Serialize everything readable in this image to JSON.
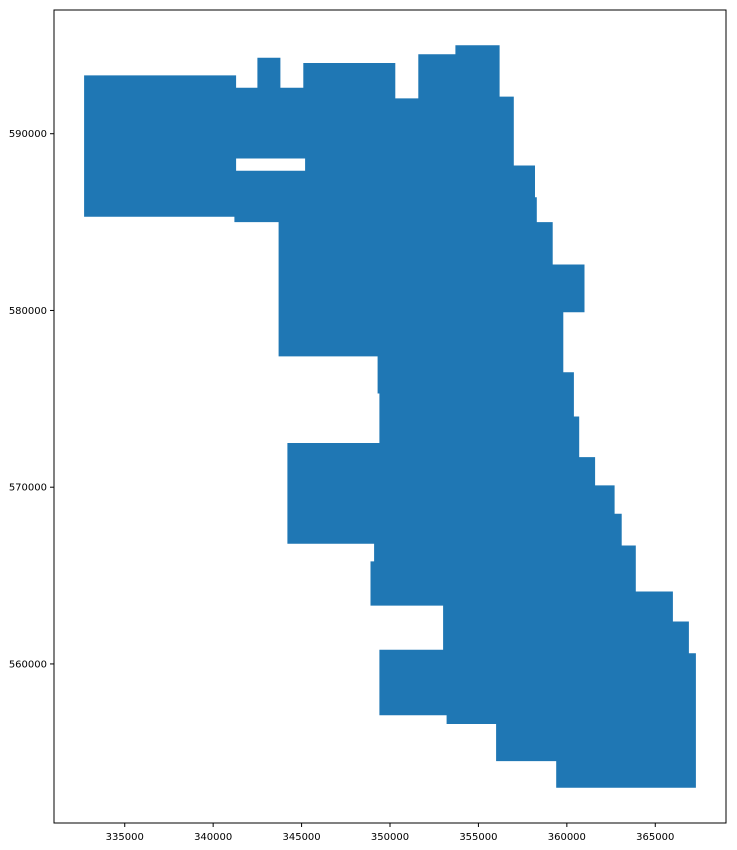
{
  "chart_data": {
    "type": "area",
    "title": "",
    "xlabel": "",
    "ylabel": "",
    "xlim": [
      331000,
      369000
    ],
    "ylim": [
      551000,
      597000
    ],
    "grid": false,
    "legend": "none",
    "fill_color": "#1f77b4",
    "axis_color": "#000000",
    "x_ticks": [
      335000,
      340000,
      345000,
      350000,
      355000,
      360000,
      365000
    ],
    "y_ticks": [
      560000,
      570000,
      580000,
      590000
    ],
    "x_tick_labels": [
      "335000",
      "340000",
      "345000",
      "350000",
      "355000",
      "360000",
      "365000"
    ],
    "y_tick_labels": [
      "560000",
      "570000",
      "580000",
      "590000"
    ],
    "polygon": [
      [
        332700,
        593300
      ],
      [
        341300,
        593300
      ],
      [
        341300,
        592600
      ],
      [
        342500,
        592600
      ],
      [
        342500,
        594300
      ],
      [
        343800,
        594300
      ],
      [
        343800,
        592600
      ],
      [
        345100,
        592600
      ],
      [
        345100,
        594000
      ],
      [
        350300,
        594000
      ],
      [
        350300,
        592000
      ],
      [
        351600,
        592000
      ],
      [
        351600,
        594500
      ],
      [
        353700,
        594500
      ],
      [
        353700,
        595000
      ],
      [
        356200,
        595000
      ],
      [
        356200,
        592100
      ],
      [
        357000,
        592100
      ],
      [
        357000,
        588200
      ],
      [
        358200,
        588200
      ],
      [
        358200,
        586400
      ],
      [
        358300,
        586400
      ],
      [
        358300,
        585000
      ],
      [
        359200,
        585000
      ],
      [
        359200,
        582600
      ],
      [
        361000,
        582600
      ],
      [
        361000,
        579900
      ],
      [
        359800,
        579900
      ],
      [
        359800,
        576500
      ],
      [
        360400,
        576500
      ],
      [
        360400,
        574000
      ],
      [
        360700,
        574000
      ],
      [
        360700,
        571700
      ],
      [
        361600,
        571700
      ],
      [
        361600,
        570100
      ],
      [
        362700,
        570100
      ],
      [
        362700,
        568500
      ],
      [
        363100,
        568500
      ],
      [
        363100,
        566700
      ],
      [
        363900,
        566700
      ],
      [
        363900,
        564100
      ],
      [
        366000,
        564100
      ],
      [
        366000,
        562400
      ],
      [
        366900,
        562400
      ],
      [
        366900,
        560600
      ],
      [
        367300,
        560600
      ],
      [
        367300,
        553000
      ],
      [
        359400,
        553000
      ],
      [
        359400,
        554500
      ],
      [
        356000,
        554500
      ],
      [
        356000,
        556600
      ],
      [
        353200,
        556600
      ],
      [
        353200,
        557100
      ],
      [
        349400,
        557100
      ],
      [
        349400,
        560800
      ],
      [
        353000,
        560800
      ],
      [
        353000,
        563300
      ],
      [
        348900,
        563300
      ],
      [
        348900,
        565800
      ],
      [
        349100,
        565800
      ],
      [
        349100,
        566800
      ],
      [
        344200,
        566800
      ],
      [
        344200,
        572500
      ],
      [
        349400,
        572500
      ],
      [
        349400,
        575300
      ],
      [
        349300,
        575300
      ],
      [
        349300,
        577400
      ],
      [
        343700,
        577400
      ],
      [
        343700,
        585000
      ],
      [
        341200,
        585000
      ],
      [
        341200,
        585300
      ],
      [
        332700,
        585300
      ]
    ],
    "holes": [
      [
        [
          341300,
          588600
        ],
        [
          345200,
          588600
        ],
        [
          345200,
          587900
        ],
        [
          341300,
          587900
        ]
      ]
    ]
  }
}
